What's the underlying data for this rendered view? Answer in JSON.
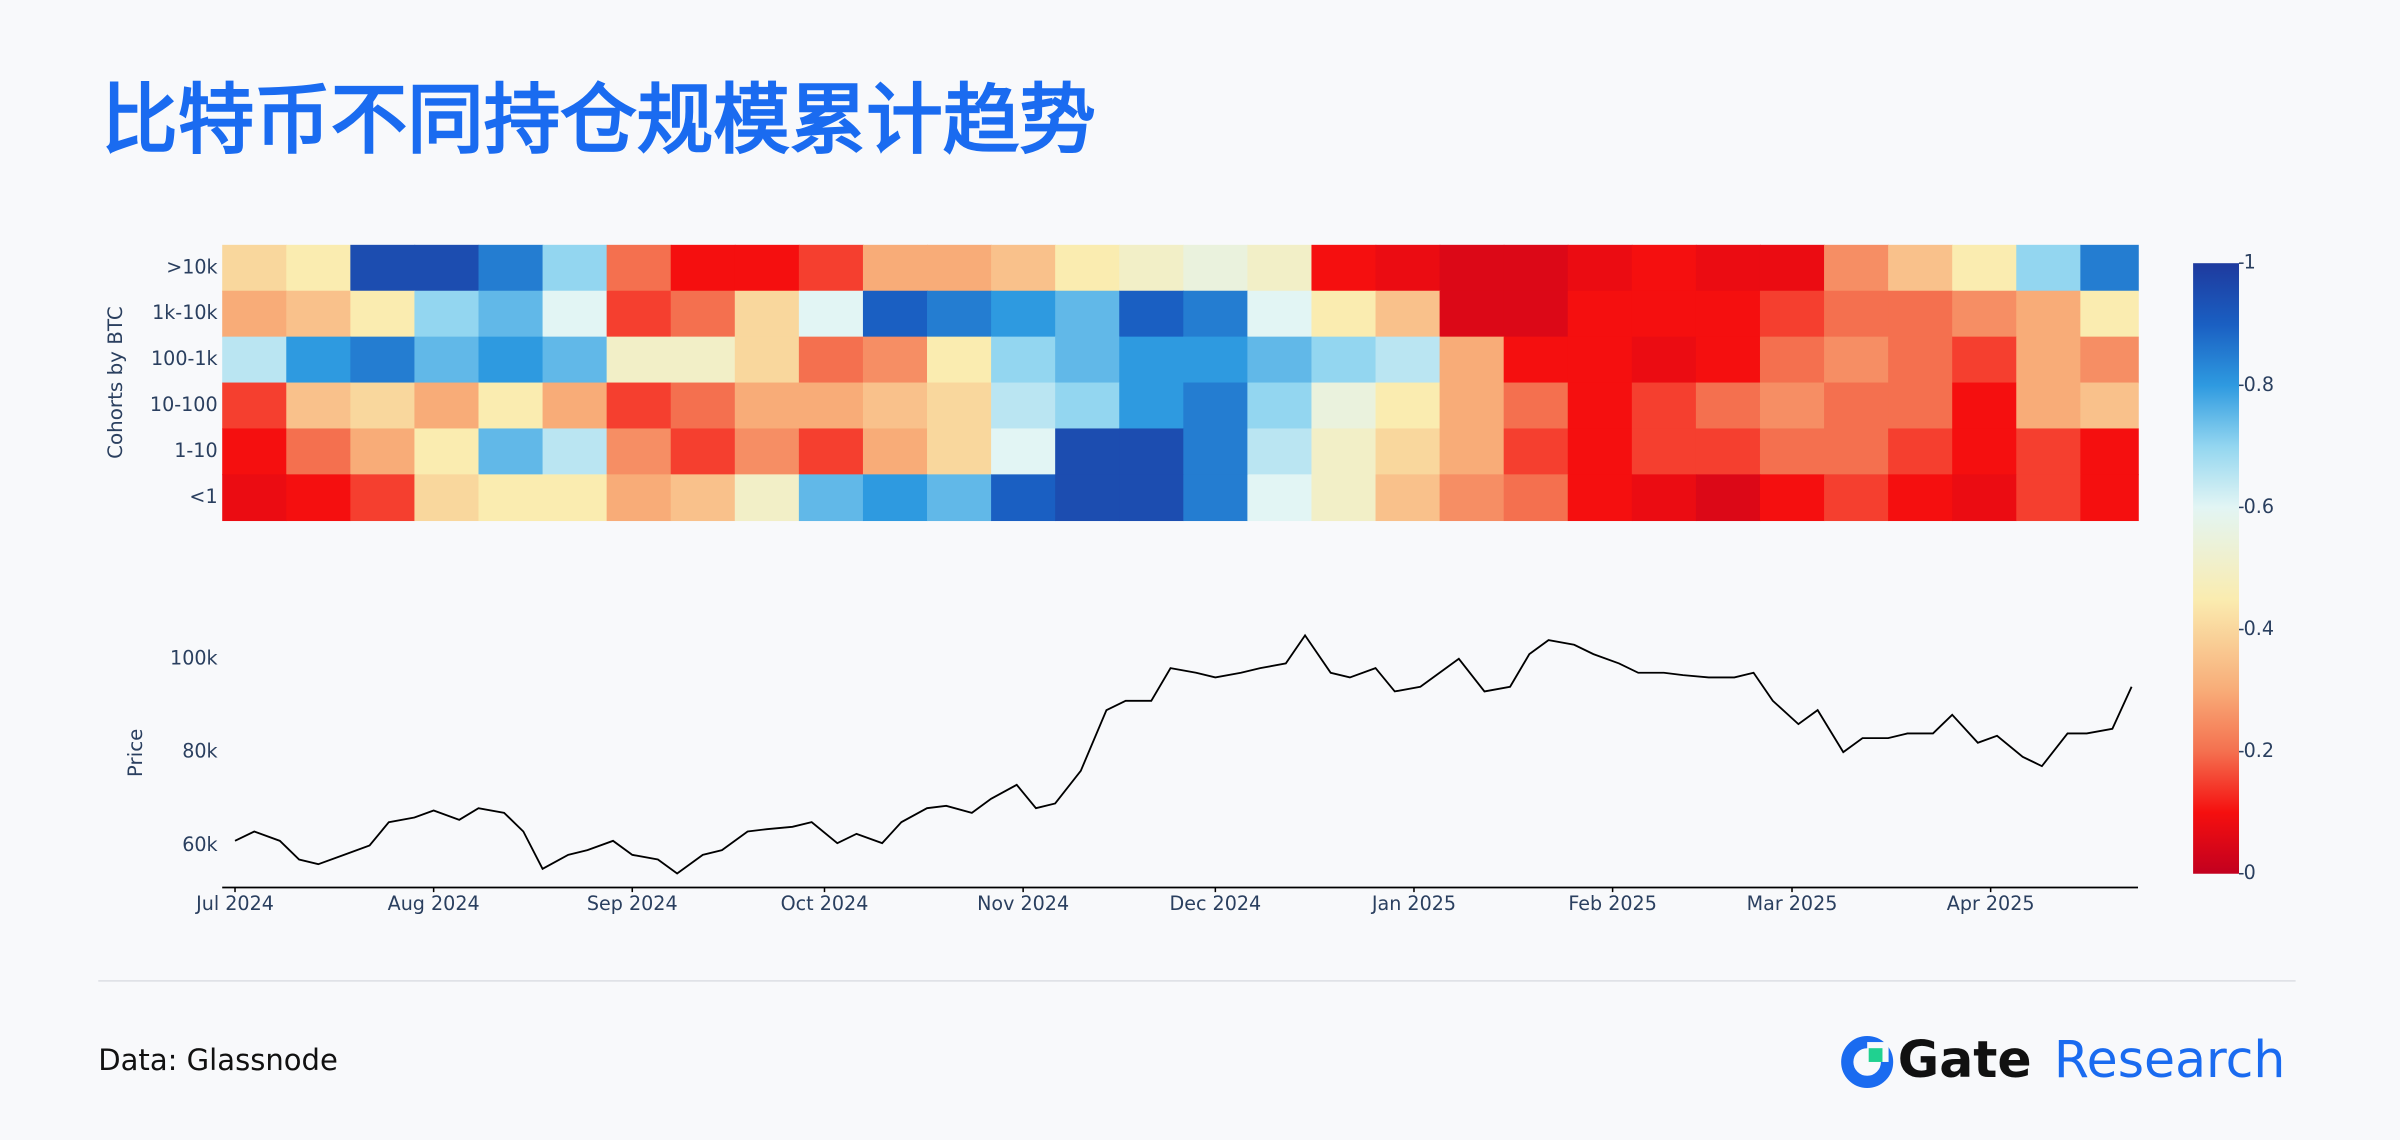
{
  "title": "比特币不同持仓规模累计趋势",
  "footer": {
    "source": "Data: Glassnode",
    "brand": "Gate",
    "brand_suffix": "Research"
  },
  "chart_data": [
    {
      "type": "heatmap",
      "y_label": "Cohorts by BTC",
      "y": [
        ">10k",
        "1k-10k",
        "100-1k",
        "10-100",
        "1-10",
        "<1"
      ],
      "x": [
        -2,
        8,
        18,
        28,
        38,
        48,
        58,
        68,
        78,
        88,
        98,
        108,
        118,
        128,
        138,
        148,
        158,
        168,
        178,
        188,
        198,
        208,
        218,
        228,
        238,
        248,
        258,
        268,
        278,
        288
      ],
      "z": [
        [
          0.4,
          0.45,
          0.95,
          0.95,
          0.85,
          0.7,
          0.2,
          0.1,
          0.1,
          0.15,
          0.3,
          0.3,
          0.35,
          0.45,
          0.5,
          0.55,
          0.5,
          0.1,
          0.08,
          0.05,
          0.05,
          0.08,
          0.1,
          0.08,
          0.08,
          0.25,
          0.35,
          0.45,
          0.7,
          0.85
        ],
        [
          0.3,
          0.35,
          0.45,
          0.7,
          0.75,
          0.6,
          0.15,
          0.2,
          0.4,
          0.6,
          0.9,
          0.85,
          0.8,
          0.75,
          0.9,
          0.85,
          0.6,
          0.45,
          0.35,
          0.05,
          0.05,
          0.1,
          0.1,
          0.1,
          0.15,
          0.2,
          0.2,
          0.25,
          0.3,
          0.45
        ],
        [
          0.65,
          0.8,
          0.85,
          0.75,
          0.8,
          0.75,
          0.5,
          0.5,
          0.4,
          0.2,
          0.25,
          0.45,
          0.7,
          0.75,
          0.8,
          0.8,
          0.75,
          0.7,
          0.65,
          0.3,
          0.1,
          0.1,
          0.08,
          0.1,
          0.2,
          0.25,
          0.2,
          0.15,
          0.3,
          0.25
        ],
        [
          0.15,
          0.35,
          0.4,
          0.3,
          0.45,
          0.3,
          0.15,
          0.2,
          0.3,
          0.3,
          0.35,
          0.4,
          0.65,
          0.7,
          0.8,
          0.85,
          0.7,
          0.55,
          0.45,
          0.3,
          0.2,
          0.1,
          0.15,
          0.2,
          0.25,
          0.2,
          0.2,
          0.1,
          0.3,
          0.35
        ],
        [
          0.1,
          0.2,
          0.3,
          0.45,
          0.75,
          0.65,
          0.25,
          0.15,
          0.25,
          0.15,
          0.3,
          0.4,
          0.6,
          0.95,
          0.95,
          0.85,
          0.65,
          0.5,
          0.4,
          0.3,
          0.15,
          0.1,
          0.15,
          0.15,
          0.2,
          0.2,
          0.15,
          0.1,
          0.15,
          0.1
        ],
        [
          0.08,
          0.1,
          0.15,
          0.4,
          0.45,
          0.45,
          0.3,
          0.35,
          0.5,
          0.75,
          0.8,
          0.75,
          0.9,
          0.95,
          0.95,
          0.85,
          0.6,
          0.5,
          0.35,
          0.25,
          0.2,
          0.1,
          0.08,
          0.05,
          0.1,
          0.15,
          0.1,
          0.08,
          0.15,
          0.1
        ]
      ],
      "xlim": [
        -2,
        297
      ],
      "zlim": [
        0,
        1
      ],
      "zticks": [
        0,
        0.2,
        0.4,
        0.6,
        0.8,
        1
      ],
      "colorscale": [
        [
          0,
          "#c2001f"
        ],
        [
          0.1,
          "#f50f0f"
        ],
        [
          0.2,
          "#f4704f"
        ],
        [
          0.3,
          "#f8ac78"
        ],
        [
          0.45,
          "#faecb0"
        ],
        [
          0.6,
          "#e2f5f4"
        ],
        [
          0.7,
          "#93d6f0"
        ],
        [
          0.8,
          "#2e9ae0"
        ],
        [
          0.9,
          "#1a5fc2"
        ],
        [
          1,
          "#1e3a9e"
        ]
      ]
    },
    {
      "type": "line",
      "y_label": "Price",
      "color": "#000000",
      "x": [
        0,
        3,
        7,
        10,
        13,
        17,
        21,
        24,
        28,
        31,
        35,
        38,
        42,
        45,
        48,
        52,
        55,
        59,
        62,
        66,
        69,
        73,
        76,
        80,
        83,
        87,
        90,
        94,
        97,
        101,
        104,
        108,
        111,
        115,
        118,
        122,
        125,
        128,
        132,
        136,
        139,
        143,
        146,
        150,
        153,
        157,
        160,
        164,
        167,
        171,
        174,
        178,
        181,
        185,
        188,
        191,
        195,
        199,
        202,
        205,
        209,
        212,
        216,
        219,
        223,
        226,
        230,
        234,
        237,
        240,
        244,
        247,
        251,
        254,
        258,
        261,
        265,
        268,
        272,
        275,
        279,
        282,
        286,
        289,
        293,
        296
      ],
      "values": [
        61000,
        63000,
        61000,
        57000,
        56000,
        58000,
        60000,
        65000,
        66000,
        67500,
        65500,
        68000,
        67000,
        63000,
        55000,
        58000,
        59000,
        61000,
        58000,
        57000,
        54000,
        58000,
        59000,
        63000,
        63500,
        64000,
        65000,
        60500,
        62500,
        60500,
        65000,
        68000,
        68500,
        67000,
        70000,
        73000,
        68000,
        69000,
        76000,
        89000,
        91000,
        91000,
        98000,
        97000,
        96000,
        97000,
        98000,
        99000,
        105000,
        97000,
        96000,
        98000,
        93000,
        94000,
        97000,
        100000,
        93000,
        94000,
        101000,
        104000,
        103000,
        101000,
        99000,
        97000,
        97000,
        96500,
        96000,
        96000,
        97000,
        91000,
        86000,
        89000,
        80000,
        83000,
        83000,
        84000,
        84000,
        88000,
        82000,
        83500,
        79000,
        77000,
        84000,
        84000,
        85000,
        94000
      ],
      "xlim": [
        -2,
        297
      ],
      "ylim": [
        51000,
        110000
      ],
      "yticks": [
        {
          "value": 60000,
          "label": "60k"
        },
        {
          "value": 80000,
          "label": "80k"
        },
        {
          "value": 100000,
          "label": "100k"
        }
      ],
      "xticks": [
        {
          "value": 0,
          "label": "Jul 2024"
        },
        {
          "value": 31,
          "label": "Aug 2024"
        },
        {
          "value": 62,
          "label": "Sep 2024"
        },
        {
          "value": 92,
          "label": "Oct 2024"
        },
        {
          "value": 123,
          "label": "Nov 2024"
        },
        {
          "value": 153,
          "label": "Dec 2024"
        },
        {
          "value": 184,
          "label": "Jan 2025"
        },
        {
          "value": 215,
          "label": "Feb 2025"
        },
        {
          "value": 243,
          "label": "Mar 2025"
        },
        {
          "value": 274,
          "label": "Apr 2025"
        }
      ]
    }
  ]
}
